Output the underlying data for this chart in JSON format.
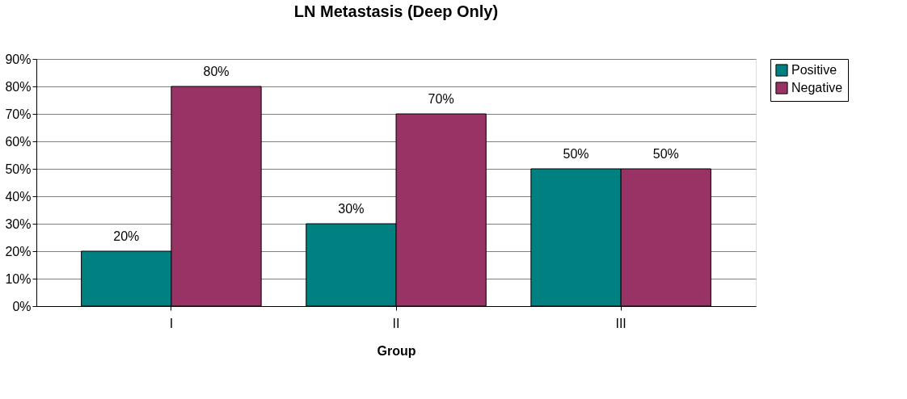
{
  "chart_data": {
    "type": "bar",
    "title": "LN Metastasis (Deep Only)",
    "xlabel": "Group",
    "categories": [
      "I",
      "II",
      "III"
    ],
    "series": [
      {
        "name": "Positive",
        "color": "#008080",
        "values": [
          20,
          30,
          50
        ],
        "value_labels": [
          "20%",
          "30%",
          "50%"
        ]
      },
      {
        "name": "Negative",
        "color": "#993366",
        "values": [
          80,
          70,
          50
        ],
        "value_labels": [
          "80%",
          "70%",
          "50%"
        ]
      }
    ],
    "ylim": [
      0,
      90
    ],
    "yticks": [
      {
        "value": 0,
        "label": "0%"
      },
      {
        "value": 10,
        "label": "10%"
      },
      {
        "value": 20,
        "label": "20%"
      },
      {
        "value": 30,
        "label": "30%"
      },
      {
        "value": 40,
        "label": "40%"
      },
      {
        "value": 50,
        "label": "50%"
      },
      {
        "value": 60,
        "label": "60%"
      },
      {
        "value": 70,
        "label": "70%"
      },
      {
        "value": 80,
        "label": "80%"
      },
      {
        "value": 90,
        "label": "90%"
      }
    ],
    "grid": "y",
    "legend": "right"
  }
}
